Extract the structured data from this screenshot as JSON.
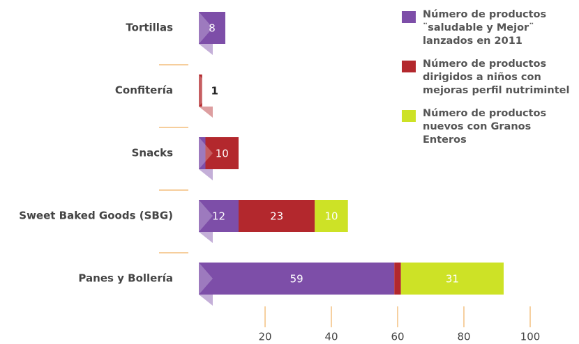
{
  "chart_data": {
    "type": "stacked-bar-horizontal",
    "categories": [
      "Tortillas",
      "Confitería",
      "Snacks",
      "Sweet Baked Goods (SBG)",
      "Panes y Bollería"
    ],
    "series": [
      {
        "name": "Número de productos ¨saludable y Mejor¨ lanzados en 2011",
        "color": "#7d4ea8",
        "values": [
          8,
          null,
          2,
          12,
          59
        ]
      },
      {
        "name": "Número de productos dirigidos a niños con mejoras perfil nutrimintel",
        "color": "#b3282d",
        "values": [
          null,
          1,
          10,
          23,
          2
        ]
      },
      {
        "name": "Número de productos nuevos con Granos Enteros",
        "color": "#cde226",
        "values": [
          null,
          null,
          null,
          10,
          31
        ]
      }
    ],
    "xlim": [
      0,
      100
    ],
    "xticks": [
      20,
      40,
      60,
      80,
      100
    ]
  }
}
